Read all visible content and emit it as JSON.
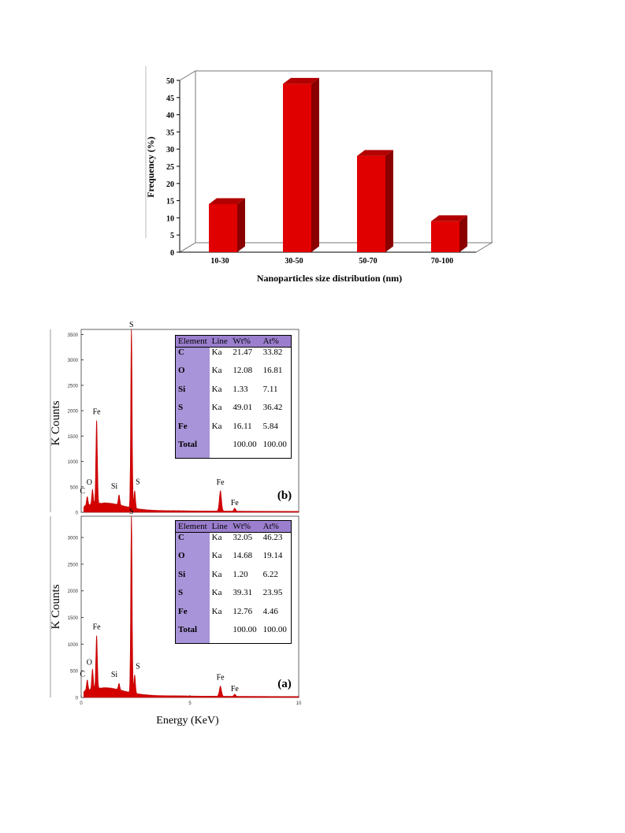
{
  "chart_data": [
    {
      "type": "bar",
      "style": "3d",
      "categories": [
        "10-30",
        "30-50",
        "50-70",
        "70-100"
      ],
      "values": [
        14,
        49,
        28,
        9
      ],
      "xlabel": "Nanoparticles size distribution (nm)",
      "ylabel": "Frequency (%)",
      "ylim": [
        0,
        50
      ],
      "yticks": [
        "0",
        "5",
        "10",
        "15",
        "20",
        "25",
        "30",
        "35",
        "40",
        "45",
        "50"
      ],
      "color": "#e00000",
      "grid": false
    },
    {
      "type": "area",
      "panel_label": "(b)",
      "ylabel": "K Counts",
      "ylim": [
        0,
        3600
      ],
      "yticks": [
        "0",
        "500",
        "1000",
        "1500",
        "2000",
        "2500",
        "3000",
        "3500"
      ],
      "xlim": [
        0,
        10
      ],
      "peaks": [
        {
          "label": "C",
          "energy": 0.28,
          "counts": 180
        },
        {
          "label": "O",
          "energy": 0.52,
          "counts": 300
        },
        {
          "label": "Fe",
          "energy": 0.71,
          "counts": 1650
        },
        {
          "label": "Si",
          "energy": 1.74,
          "counts": 200
        },
        {
          "label": "S",
          "energy": 2.31,
          "counts": 3600
        },
        {
          "label": "S",
          "energy": 2.46,
          "counts": 350
        },
        {
          "label": "Fe",
          "energy": 6.4,
          "counts": 400
        },
        {
          "label": "Fe",
          "energy": 7.06,
          "counts": 60
        }
      ],
      "table": {
        "headers": [
          "Element",
          "Line",
          "Wt%",
          "At%"
        ],
        "rows": [
          [
            "C",
            "Ka",
            "21.47",
            "33.82"
          ],
          [
            "O",
            "Ka",
            "12.08",
            "16.81"
          ],
          [
            "Si",
            "Ka",
            "1.33",
            "7.11"
          ],
          [
            "S",
            "Ka",
            "49.01",
            "36.42"
          ],
          [
            "Fe",
            "Ka",
            "16.11",
            "5.84"
          ],
          [
            "Total",
            "",
            "100.00",
            "100.00"
          ]
        ]
      }
    },
    {
      "type": "area",
      "panel_label": "(a)",
      "ylabel": "K Counts",
      "xlabel": "Energy (KeV)",
      "ylim": [
        0,
        3400
      ],
      "yticks": [
        "0",
        "500",
        "1000",
        "1500",
        "2000",
        "2500",
        "3000"
      ],
      "xlim": [
        0,
        10
      ],
      "xticks": [
        "0",
        "5",
        "10"
      ],
      "peaks": [
        {
          "label": "C",
          "energy": 0.28,
          "counts": 200
        },
        {
          "label": "O",
          "energy": 0.52,
          "counts": 380
        },
        {
          "label": "Fe",
          "energy": 0.71,
          "counts": 1000
        },
        {
          "label": "Si",
          "energy": 1.74,
          "counts": 120
        },
        {
          "label": "S",
          "energy": 2.31,
          "counts": 3400
        },
        {
          "label": "S",
          "energy": 2.46,
          "counts": 350
        },
        {
          "label": "Fe",
          "energy": 6.4,
          "counts": 190
        },
        {
          "label": "Fe",
          "energy": 7.06,
          "counts": 40
        }
      ],
      "table": {
        "headers": [
          "Element",
          "Line",
          "Wt%",
          "At%"
        ],
        "rows": [
          [
            "C",
            "Ka",
            "32.05",
            "46.23"
          ],
          [
            "O",
            "Ka",
            "14.68",
            "19.14"
          ],
          [
            "Si",
            "Ka",
            "1.20",
            "6.22"
          ],
          [
            "S",
            "Ka",
            "39.31",
            "23.95"
          ],
          [
            "Fe",
            "Ka",
            "12.76",
            "4.46"
          ],
          [
            "Total",
            "",
            "100.00",
            "100.00"
          ]
        ]
      }
    }
  ]
}
